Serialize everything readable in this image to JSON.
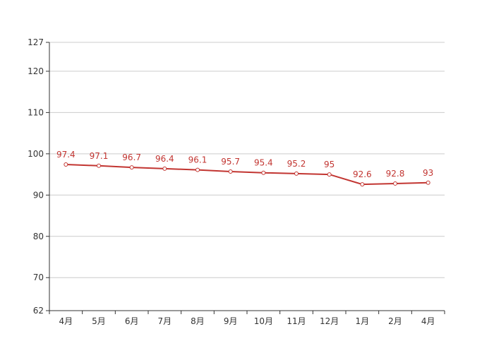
{
  "chart_data": {
    "type": "line",
    "categories": [
      "4月",
      "5月",
      "6月",
      "7月",
      "8月",
      "9月",
      "10月",
      "11月",
      "12月",
      "1月",
      "2月",
      "4月"
    ],
    "series": [
      {
        "values": [
          97.4,
          97.1,
          96.7,
          96.4,
          96.1,
          95.7,
          95.4,
          95.2,
          95,
          92.6,
          92.8,
          93
        ]
      }
    ],
    "data_labels": [
      "97.4",
      "97.1",
      "96.7",
      "96.4",
      "96.1",
      "95.7",
      "95.4",
      "95.2",
      "95",
      "92.6",
      "92.8",
      "93"
    ],
    "yticks": [
      62,
      70,
      80,
      90,
      100,
      110,
      120,
      127
    ],
    "ytick_labels": [
      "62",
      "70",
      "80",
      "90",
      "100",
      "110",
      "120",
      "127"
    ],
    "ylim": [
      62,
      127
    ],
    "title": "",
    "xlabel": "",
    "ylabel": "",
    "grid": true,
    "legend": "none",
    "colors": {
      "series": "#c23531",
      "grid": "#cccccc",
      "axis": "#333333"
    }
  }
}
